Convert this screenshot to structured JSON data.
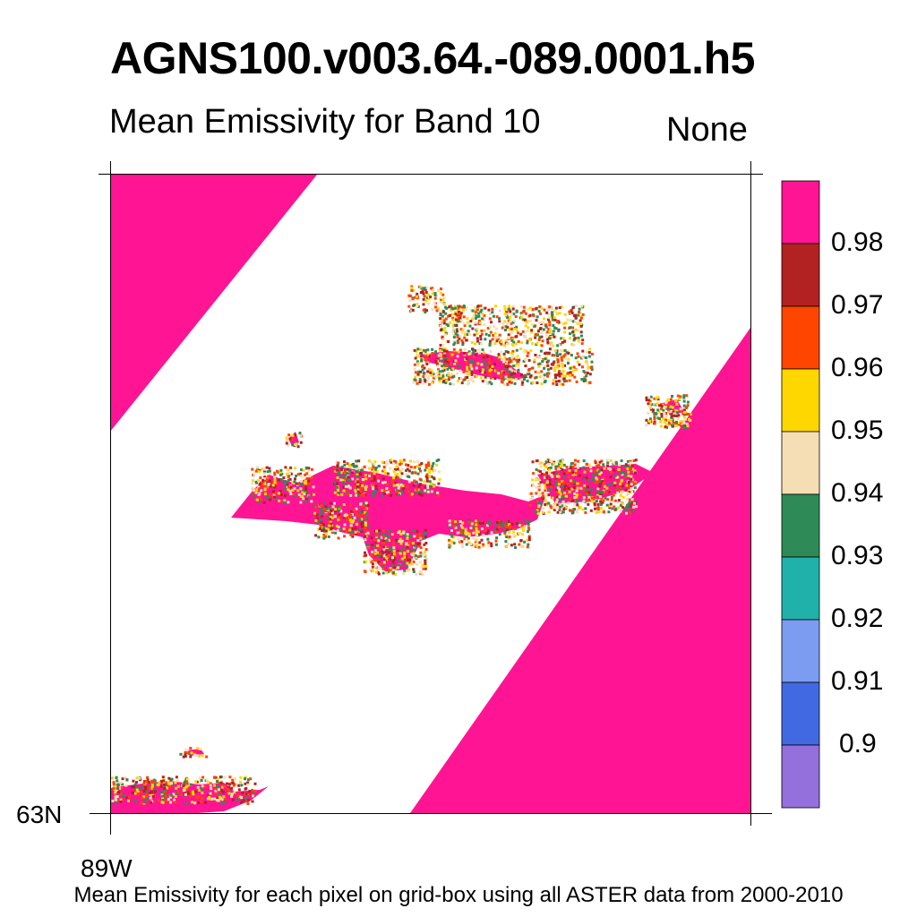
{
  "header": {
    "title": "AGNS100.v003.64.-089.0001.h5",
    "subtitle": "Mean Emissivity for Band 10",
    "units": "None"
  },
  "axes": {
    "lat_label": "63N",
    "lon_label": "89W"
  },
  "footer": {
    "caption": "Mean Emissivity for each pixel on grid-box using all ASTER data from 2000-2010"
  },
  "colorbar": {
    "tick_labels": [
      "0.98",
      "0.97",
      "0.96",
      "0.95",
      "0.94",
      "0.93",
      "0.92",
      "0.91",
      "0.9"
    ],
    "colors_top_to_bottom": [
      "#ff1493",
      "#b22222",
      "#ff4500",
      "#ffd700",
      "#f5deb3",
      "#2e8b57",
      "#20b2aa",
      "#7b9cf0",
      "#4169e1",
      "#9370db"
    ]
  },
  "map": {
    "dominant_color": "#ff1493",
    "no_data_color": "#ffffff",
    "speckle_colors": [
      "#ffd700",
      "#f5deb3",
      "#ff4500",
      "#b22222",
      "#2e8b57"
    ]
  }
}
